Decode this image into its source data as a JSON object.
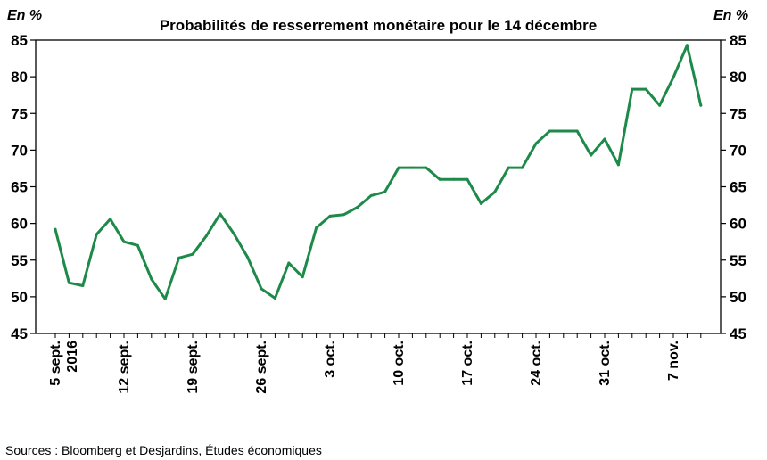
{
  "chart_data": {
    "type": "line",
    "title": "Probabilités de resserrement monétaire pour le 14 décembre",
    "ylabel_left": "En %",
    "ylabel_right": "En %",
    "ylim": [
      45,
      85
    ],
    "yticks": [
      45,
      50,
      55,
      60,
      65,
      70,
      75,
      80,
      85
    ],
    "x_tick_labels": [
      {
        "index": 0,
        "lines": [
          "5 sept.",
          "2016"
        ]
      },
      {
        "index": 5,
        "lines": [
          "12 sept."
        ]
      },
      {
        "index": 10,
        "lines": [
          "19 sept."
        ]
      },
      {
        "index": 15,
        "lines": [
          "26 sept."
        ]
      },
      {
        "index": 20,
        "lines": [
          "3 oct."
        ]
      },
      {
        "index": 25,
        "lines": [
          "10 oct."
        ]
      },
      {
        "index": 30,
        "lines": [
          "17 oct."
        ]
      },
      {
        "index": 35,
        "lines": [
          "24 oct."
        ]
      },
      {
        "index": 40,
        "lines": [
          "31 oct."
        ]
      },
      {
        "index": 45,
        "lines": [
          "7 nov."
        ]
      }
    ],
    "series": [
      {
        "color": "#1e8a4a",
        "values": [
          59.2,
          51.9,
          51.5,
          58.5,
          60.6,
          57.5,
          57.0,
          52.4,
          49.7,
          55.3,
          55.8,
          58.3,
          61.3,
          58.6,
          55.4,
          51.1,
          49.8,
          54.6,
          52.7,
          59.4,
          61.0,
          61.2,
          62.2,
          63.8,
          64.3,
          67.6,
          67.6,
          67.6,
          66.0,
          66.0,
          66.0,
          62.7,
          64.3,
          67.6,
          67.6,
          70.9,
          72.6,
          72.6,
          72.6,
          69.3,
          71.5,
          68.0,
          78.3,
          78.3,
          76.1,
          79.9,
          84.3,
          76.1
        ]
      }
    ]
  },
  "source": "Sources : Bloomberg et Desjardins, Études économiques"
}
